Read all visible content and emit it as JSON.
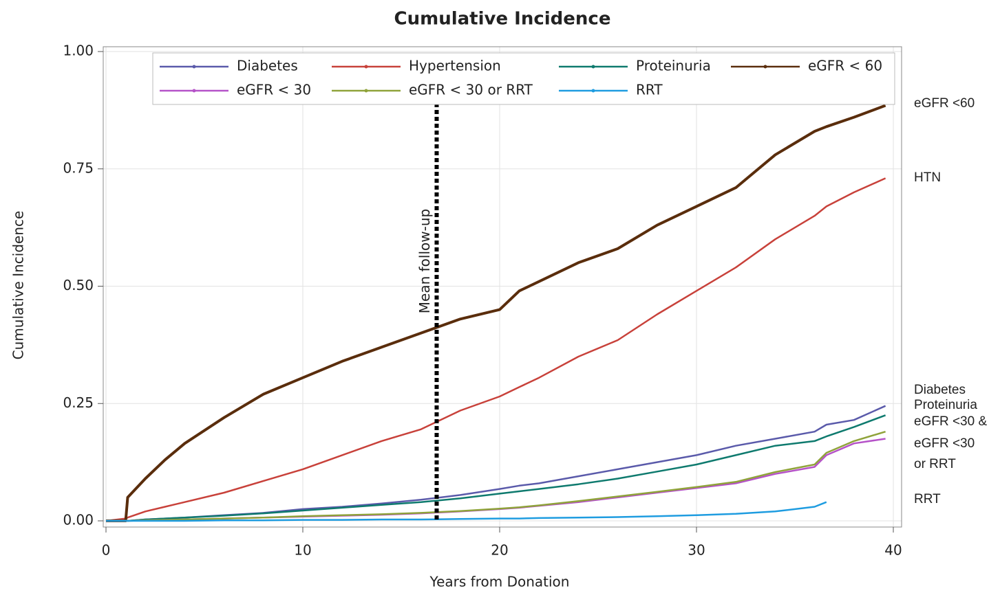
{
  "chart_data": {
    "type": "line",
    "title": "Cumulative Incidence",
    "x_label": "Years from Donation",
    "y_label": "Cumulative Incidence",
    "x": [
      0,
      1,
      1.1,
      2,
      3,
      4,
      6,
      8,
      10,
      12,
      14,
      16,
      18,
      20,
      21,
      22,
      24,
      26,
      28,
      30,
      32,
      34,
      36,
      36.6,
      38,
      39.6
    ],
    "xlim": [
      0,
      40
    ],
    "xticks": [
      0,
      10,
      20,
      30,
      40
    ],
    "ylim": [
      0,
      1
    ],
    "yticks": [
      {
        "value": 0,
        "label": "0.00"
      },
      {
        "value": 0.25,
        "label": "0.25"
      },
      {
        "value": 0.5,
        "label": "0.50"
      },
      {
        "value": 0.75,
        "label": "0.75"
      },
      {
        "value": 1,
        "label": "1.00"
      }
    ],
    "grid": true,
    "legend": "top",
    "series": [
      {
        "name": "Diabetes",
        "color": "#5a5aaa",
        "values": [
          0,
          0,
          0,
          0.003,
          0.005,
          0.007,
          0.012,
          0.017,
          0.025,
          0.03,
          0.037,
          0.045,
          0.055,
          0.068,
          0.075,
          0.08,
          0.095,
          0.11,
          0.125,
          0.14,
          0.16,
          0.175,
          0.19,
          0.205,
          0.215,
          0.245
        ]
      },
      {
        "name": "Hypertension",
        "color": "#c8413a",
        "values": [
          0,
          0.005,
          0.007,
          0.02,
          0.03,
          0.04,
          0.06,
          0.085,
          0.11,
          0.14,
          0.17,
          0.195,
          0.235,
          0.265,
          0.285,
          0.305,
          0.35,
          0.385,
          0.44,
          0.49,
          0.54,
          0.6,
          0.65,
          0.67,
          0.7,
          0.73
        ]
      },
      {
        "name": "Proteinuria",
        "color": "#0e7a6e",
        "values": [
          0,
          0,
          0,
          0.003,
          0.005,
          0.007,
          0.011,
          0.016,
          0.022,
          0.028,
          0.034,
          0.04,
          0.048,
          0.058,
          0.063,
          0.068,
          0.078,
          0.09,
          0.105,
          0.12,
          0.14,
          0.16,
          0.17,
          0.18,
          0.2,
          0.225
        ]
      },
      {
        "name": "eGFR < 60",
        "color": "#5a2d0c",
        "values": [
          0,
          0,
          0.05,
          0.09,
          0.13,
          0.165,
          0.22,
          0.27,
          0.305,
          0.34,
          0.37,
          0.4,
          0.43,
          0.45,
          0.49,
          0.51,
          0.55,
          0.58,
          0.63,
          0.67,
          0.71,
          0.78,
          0.83,
          0.84,
          0.86,
          0.885
        ]
      },
      {
        "name": "eGFR < 30",
        "color": "#b552c8",
        "values": [
          0,
          0,
          0,
          0.001,
          0.002,
          0.003,
          0.005,
          0.007,
          0.009,
          0.011,
          0.013,
          0.016,
          0.02,
          0.025,
          0.028,
          0.032,
          0.04,
          0.05,
          0.06,
          0.07,
          0.08,
          0.1,
          0.115,
          0.14,
          0.165,
          0.175
        ]
      },
      {
        "name": "eGFR < 30 or RRT",
        "color": "#8fa33a",
        "values": [
          0,
          0,
          0,
          0.001,
          0.002,
          0.003,
          0.005,
          0.007,
          0.01,
          0.012,
          0.014,
          0.017,
          0.021,
          0.026,
          0.029,
          0.033,
          0.042,
          0.052,
          0.062,
          0.072,
          0.083,
          0.104,
          0.12,
          0.145,
          0.17,
          0.19
        ]
      },
      {
        "name": "RRT",
        "color": "#1e9ce0",
        "values": [
          0,
          0,
          0,
          0,
          0,
          0,
          0.001,
          0.001,
          0.002,
          0.002,
          0.003,
          0.003,
          0.004,
          0.005,
          0.005,
          0.006,
          0.007,
          0.008,
          0.01,
          0.012,
          0.015,
          0.02,
          0.03,
          0.04,
          null,
          null
        ]
      }
    ],
    "reference_line": {
      "x": 16.8,
      "label": "Mean follow-up"
    },
    "right_labels": [
      "eGFR <60",
      "HTN",
      "Diabetes",
      "Proteinuria",
      "eGFR <30 &",
      "eGFR <30",
      "or RRT",
      "RRT"
    ]
  }
}
